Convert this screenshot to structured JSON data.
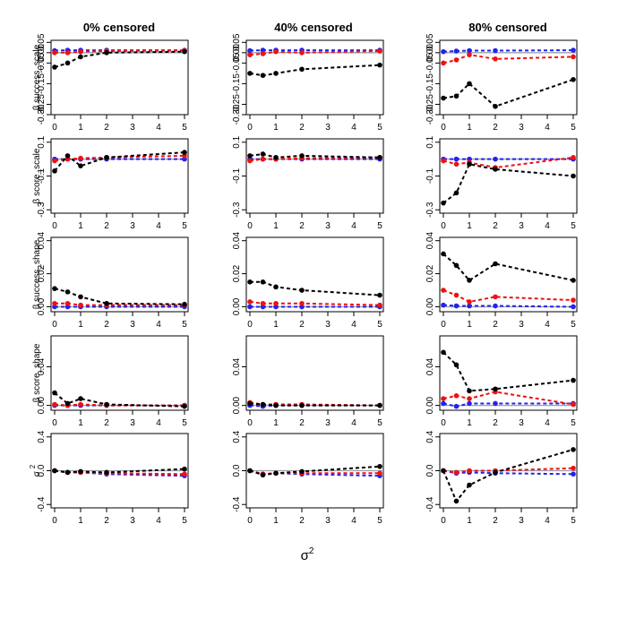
{
  "figure": {
    "columns": [
      "0% censored",
      "40% censored",
      "80% censored"
    ],
    "xlabel": "σ",
    "xlabel_sup": "2"
  },
  "colors": {
    "black": "#000000",
    "red": "#ee1111",
    "blue": "#2222ee",
    "reference": "#9aa0a8"
  },
  "chart_data": {
    "type": "line",
    "x": [
      0,
      0.5,
      1,
      2,
      5
    ],
    "xticks": [
      0,
      1,
      2,
      3,
      4,
      5
    ],
    "rows": [
      {
        "ylabel_prefix": "β",
        "ylabel": "success_scale",
        "ylim": [
          -0.3,
          0.06
        ],
        "yticks": [
          "0.05",
          "0.00",
          "-0.05",
          "-0.15",
          "-0.25",
          "-0.30"
        ],
        "yticks_values": [
          0.05,
          0.0,
          -0.05,
          -0.15,
          -0.25,
          -0.3
        ],
        "panels": [
          {
            "series": [
              {
                "name": "black",
                "values": [
                  -0.07,
                  -0.05,
                  -0.02,
                  0.0,
                  0.005
                ]
              },
              {
                "name": "red",
                "values": [
                  0.0,
                  0.0,
                  0.005,
                  0.008,
                  0.01
                ]
              },
              {
                "name": "blue",
                "values": [
                  0.01,
                  0.012,
                  0.012,
                  0.012,
                  0.012
                ]
              }
            ]
          },
          {
            "series": [
              {
                "name": "black",
                "values": [
                  -0.1,
                  -0.11,
                  -0.1,
                  -0.08,
                  -0.06
                ]
              },
              {
                "name": "red",
                "values": [
                  -0.01,
                  -0.005,
                  0.005,
                  0.0,
                  0.008
                ]
              },
              {
                "name": "blue",
                "values": [
                  0.01,
                  0.012,
                  0.012,
                  0.012,
                  0.012
                ]
              }
            ]
          },
          {
            "series": [
              {
                "name": "black",
                "values": [
                  -0.22,
                  -0.21,
                  -0.15,
                  -0.26,
                  -0.13
                ]
              },
              {
                "name": "red",
                "values": [
                  -0.05,
                  -0.035,
                  -0.01,
                  -0.03,
                  -0.02
                ]
              },
              {
                "name": "blue",
                "values": [
                  0.005,
                  0.008,
                  0.01,
                  0.01,
                  0.012
                ]
              }
            ]
          }
        ]
      },
      {
        "ylabel_prefix": "β",
        "ylabel": "score_scale",
        "ylim": [
          -0.32,
          0.12
        ],
        "yticks": [
          "0.1",
          "-0.1",
          "-0.3"
        ],
        "yticks_values": [
          0.1,
          -0.1,
          -0.3
        ],
        "panels": [
          {
            "series": [
              {
                "name": "black",
                "values": [
                  -0.07,
                  0.02,
                  -0.04,
                  0.01,
                  0.04
                ]
              },
              {
                "name": "red",
                "values": [
                  -0.01,
                  0.0,
                  0.005,
                  0.01,
                  0.02
                ]
              },
              {
                "name": "blue",
                "values": [
                  0.0,
                  0.0,
                  0.0,
                  0.0,
                  0.0
                ]
              }
            ]
          },
          {
            "series": [
              {
                "name": "black",
                "values": [
                  0.02,
                  0.03,
                  0.01,
                  0.02,
                  0.01
                ]
              },
              {
                "name": "red",
                "values": [
                  -0.01,
                  0.0,
                  0.0,
                  0.005,
                  0.01
                ]
              },
              {
                "name": "blue",
                "values": [
                  0.0,
                  0.0,
                  0.0,
                  0.0,
                  0.0
                ]
              }
            ]
          },
          {
            "series": [
              {
                "name": "black",
                "values": [
                  -0.26,
                  -0.2,
                  -0.03,
                  -0.06,
                  -0.1
                ]
              },
              {
                "name": "red",
                "values": [
                  -0.01,
                  -0.03,
                  -0.02,
                  -0.05,
                  0.01
                ]
              },
              {
                "name": "blue",
                "values": [
                  0.0,
                  0.0,
                  0.0,
                  0.0,
                  0.0
                ]
              }
            ]
          }
        ]
      },
      {
        "ylabel_prefix": "β",
        "ylabel": "success_shape",
        "ylim": [
          -0.003,
          0.042
        ],
        "yticks": [
          "0.00",
          "0.02",
          "0.04"
        ],
        "yticks_values": [
          0.0,
          0.02,
          0.04
        ],
        "panels": [
          {
            "series": [
              {
                "name": "black",
                "values": [
                  0.011,
                  0.009,
                  0.006,
                  0.002,
                  0.0015
                ]
              },
              {
                "name": "red",
                "values": [
                  0.002,
                  0.002,
                  0.001,
                  0.001,
                  0.001
                ]
              },
              {
                "name": "blue",
                "values": [
                  0.0,
                  0.0,
                  0.0,
                  0.0,
                  0.0
                ]
              }
            ]
          },
          {
            "series": [
              {
                "name": "black",
                "values": [
                  0.015,
                  0.015,
                  0.012,
                  0.01,
                  0.007
                ]
              },
              {
                "name": "red",
                "values": [
                  0.003,
                  0.002,
                  0.002,
                  0.002,
                  0.001
                ]
              },
              {
                "name": "blue",
                "values": [
                  0.0,
                  0.0,
                  0.0,
                  0.0,
                  0.0
                ]
              }
            ]
          },
          {
            "series": [
              {
                "name": "black",
                "values": [
                  0.032,
                  0.025,
                  0.016,
                  0.026,
                  0.016
                ]
              },
              {
                "name": "red",
                "values": [
                  0.01,
                  0.007,
                  0.003,
                  0.006,
                  0.004
                ]
              },
              {
                "name": "blue",
                "values": [
                  0.001,
                  0.0005,
                  0.0005,
                  0.0005,
                  0.0
                ]
              }
            ]
          }
        ]
      },
      {
        "ylabel_prefix": "β",
        "ylabel": "score_shape",
        "ylim": [
          -0.005,
          0.072
        ],
        "yticks": [
          "0.00",
          "0.04"
        ],
        "yticks_values": [
          0.0,
          0.04
        ],
        "panels": [
          {
            "series": [
              {
                "name": "black",
                "values": [
                  0.013,
                  0.002,
                  0.007,
                  0.001,
                  -0.001
                ]
              },
              {
                "name": "red",
                "values": [
                  0.001,
                  0.0,
                  0.001,
                  0.0,
                  0.0
                ]
              },
              {
                "name": "blue",
                "values": [
                  0.0,
                  0.0,
                  0.0,
                  0.0,
                  0.0
                ]
              }
            ]
          },
          {
            "series": [
              {
                "name": "black",
                "values": [
                  0.002,
                  0.001,
                  0.0,
                  0.0,
                  0.0
                ]
              },
              {
                "name": "red",
                "values": [
                  0.003,
                  0.001,
                  0.001,
                  0.001,
                  0.0
                ]
              },
              {
                "name": "blue",
                "values": [
                  0.0,
                  -0.001,
                  0.0,
                  0.0,
                  0.0
                ]
              }
            ]
          },
          {
            "series": [
              {
                "name": "black",
                "values": [
                  0.055,
                  0.042,
                  0.015,
                  0.017,
                  0.026
                ]
              },
              {
                "name": "red",
                "values": [
                  0.007,
                  0.01,
                  0.007,
                  0.014,
                  0.001
                ]
              },
              {
                "name": "blue",
                "values": [
                  0.002,
                  -0.001,
                  0.002,
                  0.002,
                  0.002
                ]
              }
            ]
          }
        ]
      },
      {
        "ylabel_prefix": "σ",
        "ylabel": "2",
        "ylim": [
          -0.44,
          0.44
        ],
        "yticks": [
          "0.4",
          "0.0",
          "-0.4"
        ],
        "yticks_values": [
          0.4,
          0.0,
          -0.4
        ],
        "panels": [
          {
            "series": [
              {
                "name": "black",
                "values": [
                  0.0,
                  -0.02,
                  -0.01,
                  -0.02,
                  0.02
                ]
              },
              {
                "name": "red",
                "values": [
                  0.0,
                  -0.02,
                  -0.02,
                  -0.03,
                  -0.04
                ]
              },
              {
                "name": "blue",
                "values": [
                  0.0,
                  -0.02,
                  -0.02,
                  -0.04,
                  -0.06
                ]
              }
            ]
          },
          {
            "series": [
              {
                "name": "black",
                "values": [
                  0.0,
                  -0.05,
                  -0.03,
                  -0.01,
                  0.05
                ]
              },
              {
                "name": "red",
                "values": [
                  0.0,
                  -0.04,
                  -0.03,
                  -0.03,
                  -0.03
                ]
              },
              {
                "name": "blue",
                "values": [
                  0.0,
                  -0.04,
                  -0.03,
                  -0.04,
                  -0.06
                ]
              }
            ]
          },
          {
            "series": [
              {
                "name": "black",
                "values": [
                  0.0,
                  -0.36,
                  -0.17,
                  -0.02,
                  0.25
                ]
              },
              {
                "name": "red",
                "values": [
                  0.0,
                  -0.02,
                  0.0,
                  0.0,
                  0.03
                ]
              },
              {
                "name": "blue",
                "values": [
                  0.0,
                  -0.03,
                  -0.02,
                  -0.03,
                  -0.04
                ]
              }
            ]
          }
        ]
      }
    ]
  }
}
